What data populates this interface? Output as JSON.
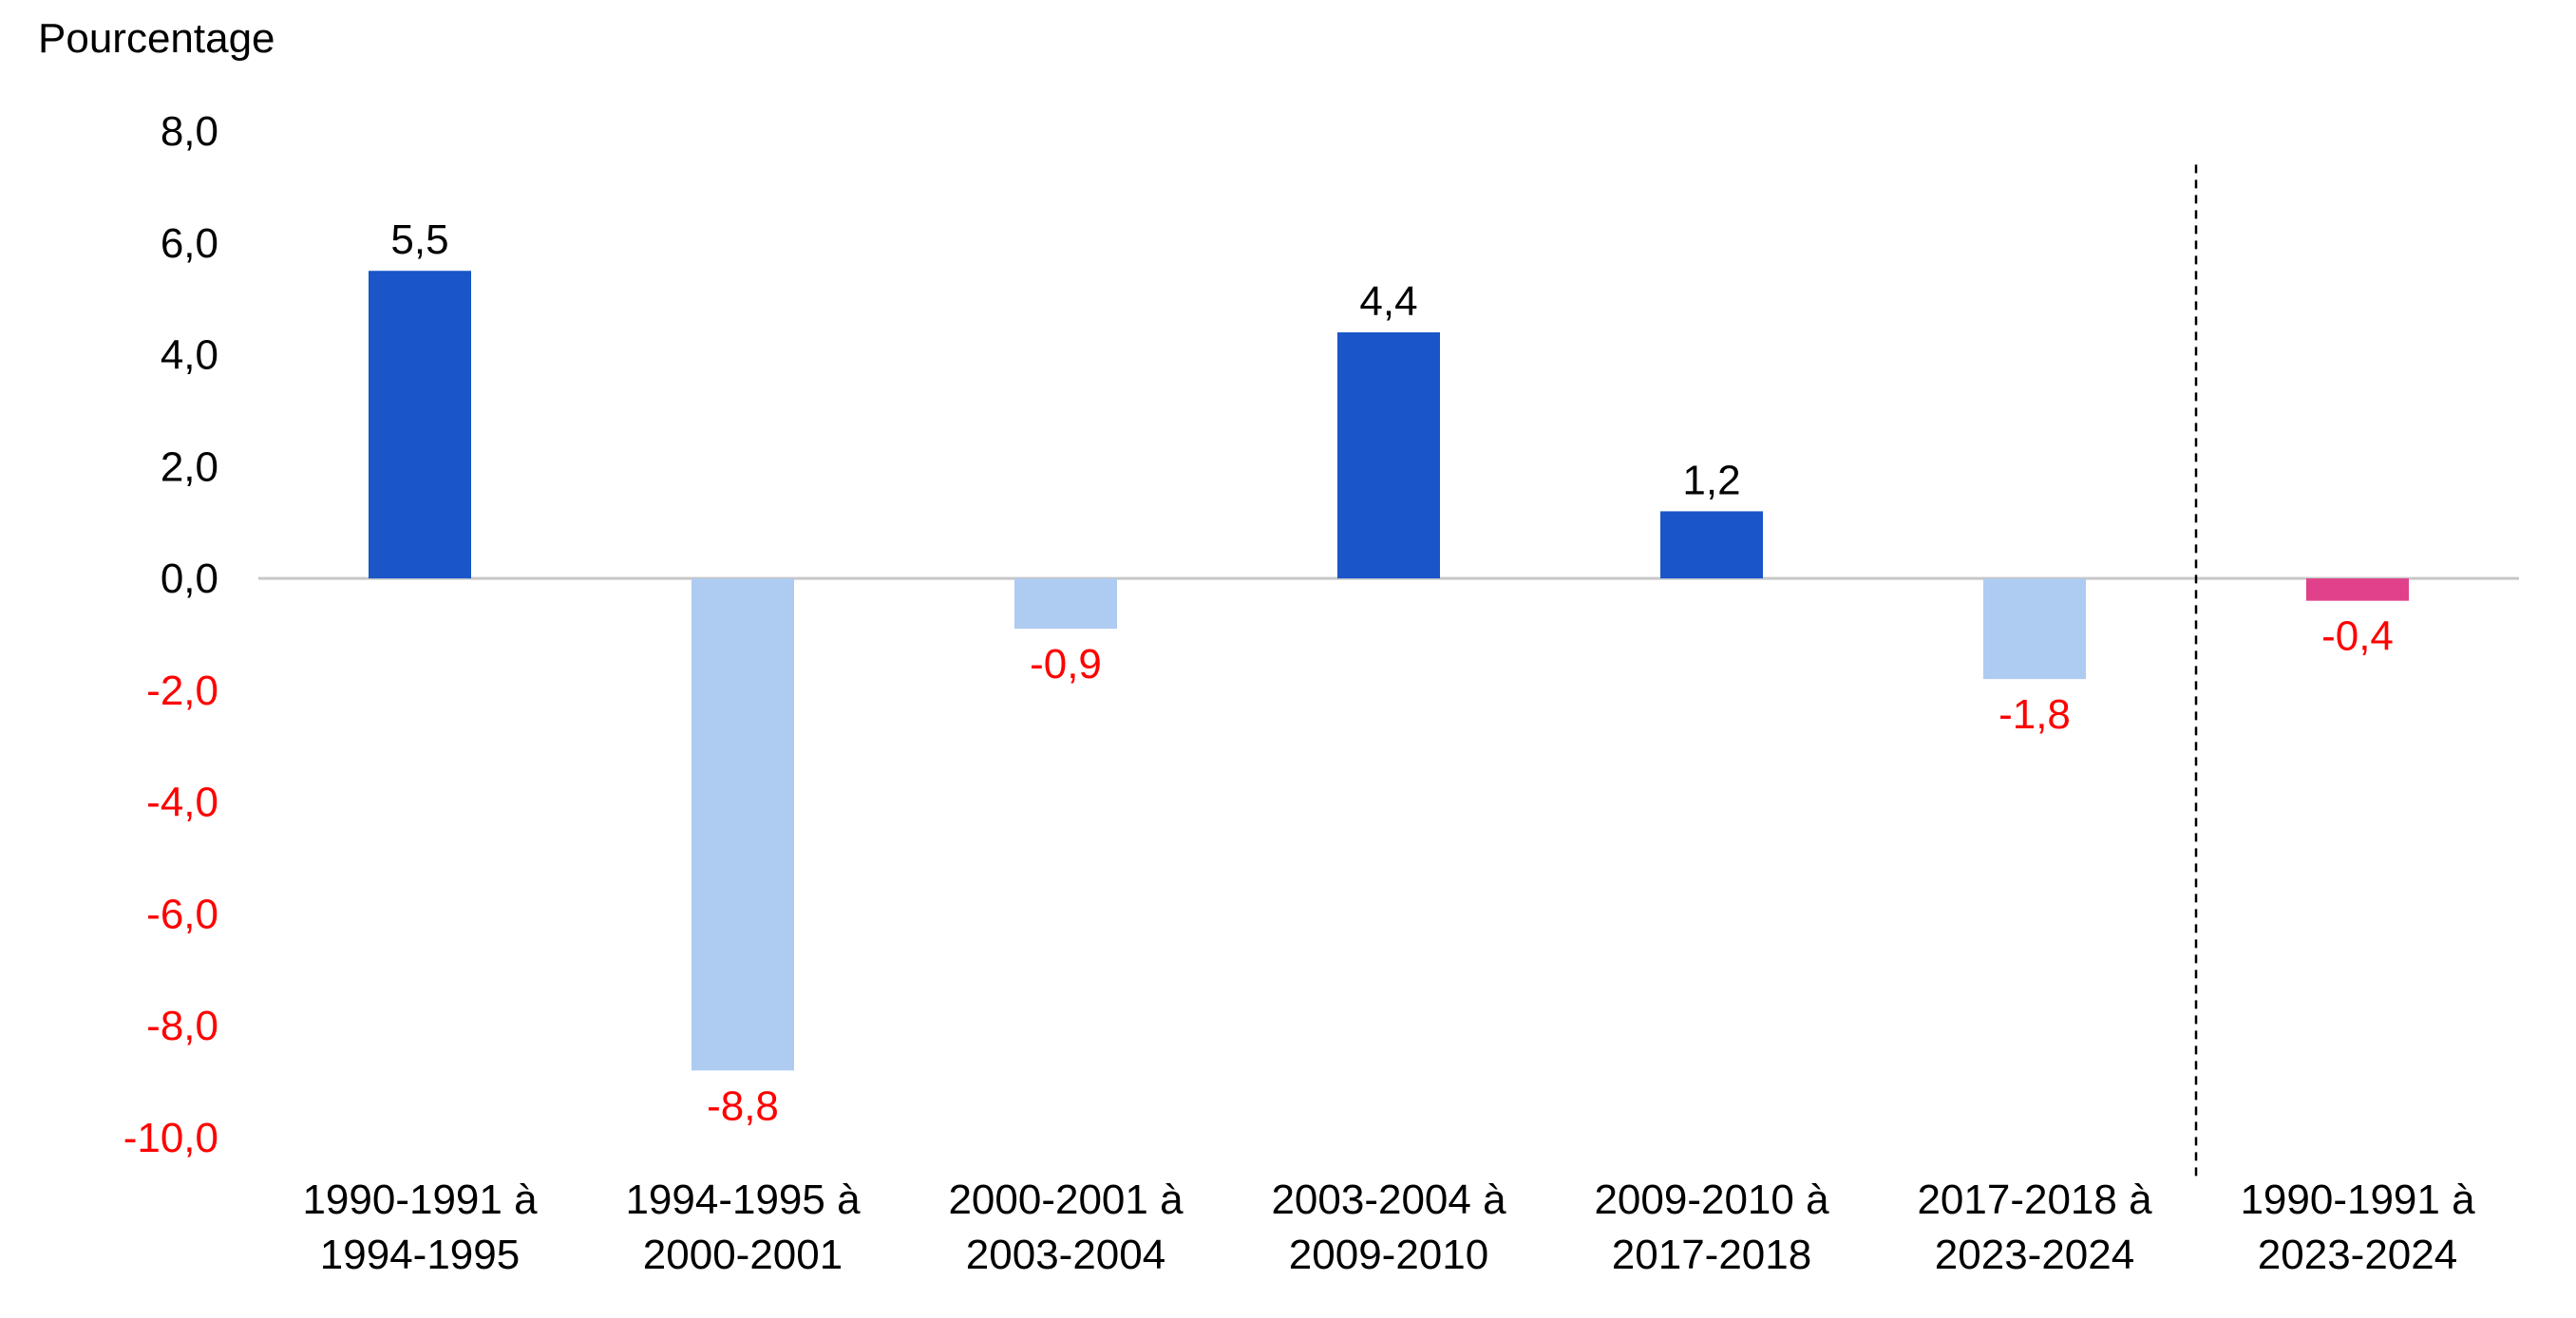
{
  "chart_data": {
    "type": "bar",
    "ylabel": "Pourcentage",
    "ylim": [
      -10,
      8
    ],
    "yticks": [
      8,
      6,
      4,
      2,
      0,
      -2,
      -4,
      -6,
      -8,
      -10
    ],
    "ytick_labels": [
      "8,0",
      "6,0",
      "4,0",
      "2,0",
      "0,0",
      "-2,0",
      "-4,0",
      "-6,0",
      "-8,0",
      "-10,0"
    ],
    "categories": [
      [
        "1990-1991 à",
        "1994-1995"
      ],
      [
        "1994-1995 à",
        "2000-2001"
      ],
      [
        "2000-2001 à",
        "2003-2004"
      ],
      [
        "2003-2004 à",
        "2009-2010"
      ],
      [
        "2009-2010 à",
        "2017-2018"
      ],
      [
        "2017-2018 à",
        "2023-2024"
      ],
      [
        "1990-1991 à",
        "2023-2024"
      ]
    ],
    "values": [
      5.5,
      -8.8,
      -0.9,
      4.4,
      1.2,
      -1.8,
      -0.4
    ],
    "data_labels": [
      "5,5",
      "-8,8",
      "-0,9",
      "4,4",
      "1,2",
      "-1,8",
      "-0,4"
    ],
    "bar_colors": [
      "#1a56c8",
      "#aecbf2",
      "#aecbf2",
      "#1a56c8",
      "#1a56c8",
      "#aecbf2",
      "#e0418a"
    ],
    "colors": {
      "positive_label": "#000000",
      "negative_label": "#ff0000",
      "axis_line": "#c8c8c8",
      "separator": "#000000"
    },
    "separator_after_category": 5,
    "grid": false
  }
}
